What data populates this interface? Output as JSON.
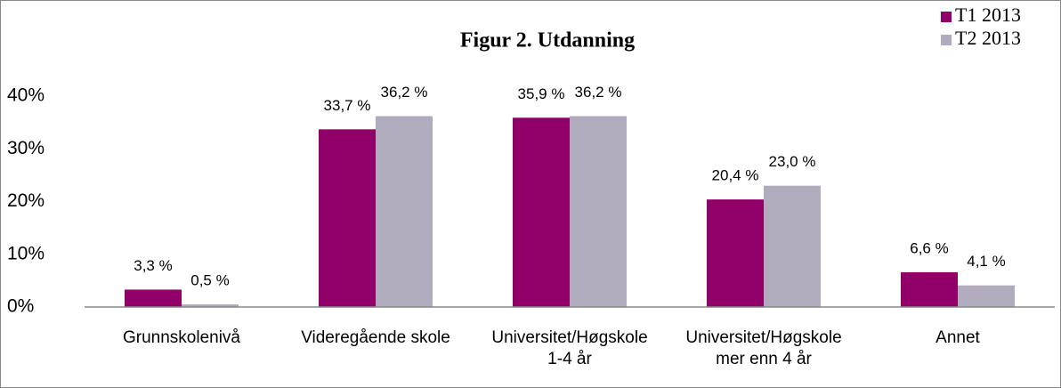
{
  "chart_data": {
    "type": "bar",
    "title": "Figur 2. Utdanning",
    "categories": [
      "Grunnskolenivå",
      "Videregående skole",
      "Universitet/Høgskole\n1-4 år",
      "Universitet/Høgskole\nmer enn 4 år",
      "Annet"
    ],
    "series": [
      {
        "name": "T1 2013",
        "color": "#910068",
        "values": [
          3.3,
          33.7,
          35.9,
          20.4,
          6.6
        ],
        "value_labels": [
          "3,3 %",
          "33,7 %",
          "35,9 %",
          "20,4 %",
          "6,6 %"
        ]
      },
      {
        "name": "T2 2013",
        "color": "#b1acbd",
        "values": [
          0.5,
          36.2,
          36.2,
          23.0,
          4.1
        ],
        "value_labels": [
          "0,5 %",
          "36,2 %",
          "36,2 %",
          "23,0 %",
          "4,1 %"
        ]
      }
    ],
    "ylim": [
      0,
      40
    ],
    "yticks": [
      {
        "value": 0,
        "label": "0%"
      },
      {
        "value": 10,
        "label": "10%"
      },
      {
        "value": 20,
        "label": "20%"
      },
      {
        "value": 30,
        "label": "30%"
      },
      {
        "value": 40,
        "label": "40%"
      }
    ],
    "legend": "top-right",
    "grid": false
  }
}
